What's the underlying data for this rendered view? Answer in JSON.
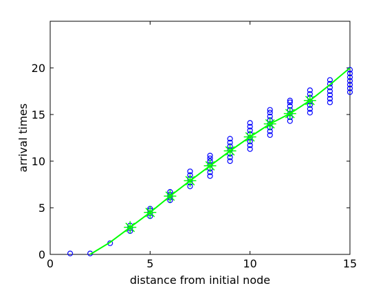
{
  "chart_data": {
    "type": "scatter",
    "xlabel": "distance from initial node",
    "ylabel": "arrival times",
    "xlim": [
      0,
      15
    ],
    "xticks": [
      0,
      5,
      10,
      15
    ],
    "ylim": [
      0,
      25
    ],
    "yticks": [
      0,
      5,
      10,
      15,
      20
    ],
    "series": [
      {
        "color": "#0000ff",
        "marker": "o",
        "line": false,
        "x": [
          1,
          2,
          3,
          4,
          4,
          4,
          5,
          5,
          5,
          5,
          6,
          6,
          6,
          6,
          7,
          7,
          7,
          7,
          7,
          8,
          8,
          8,
          8,
          8,
          8,
          8,
          9,
          9,
          9,
          9,
          9,
          9,
          9,
          10,
          10,
          10,
          10,
          10,
          10,
          10,
          10,
          11,
          11,
          11,
          11,
          11,
          11,
          11,
          11,
          12,
          12,
          12,
          12,
          12,
          12,
          12,
          13,
          13,
          13,
          13,
          13,
          13,
          13,
          14,
          14,
          14,
          14,
          14,
          14,
          14,
          15,
          15,
          15,
          15,
          15,
          15,
          15
        ],
        "values": [
          0.1,
          0.1,
          1.2,
          2.5,
          2.8,
          3.1,
          4.1,
          4.4,
          4.7,
          4.9,
          5.8,
          6.1,
          6.4,
          6.7,
          7.3,
          7.7,
          8.1,
          8.5,
          8.9,
          8.4,
          8.8,
          9.2,
          9.6,
          10.0,
          10.3,
          10.6,
          10.0,
          10.4,
          10.8,
          11.2,
          11.6,
          12.0,
          12.4,
          11.3,
          11.7,
          12.1,
          12.5,
          12.9,
          13.3,
          13.7,
          14.1,
          12.8,
          13.2,
          13.6,
          14.0,
          14.4,
          14.8,
          15.2,
          15.5,
          14.3,
          14.7,
          15.1,
          15.5,
          15.9,
          16.3,
          16.5,
          15.2,
          15.6,
          16.0,
          16.4,
          16.8,
          17.2,
          17.6,
          16.3,
          16.7,
          17.1,
          17.5,
          17.9,
          18.3,
          18.7,
          17.4,
          17.8,
          18.2,
          18.6,
          19.0,
          19.4,
          19.8
        ]
      },
      {
        "color": "#00ff00",
        "marker": "none",
        "line": true,
        "x": [
          2,
          3,
          4,
          5,
          6,
          7,
          8,
          9,
          10,
          11,
          12,
          13,
          14,
          15
        ],
        "values": [
          0,
          1.3,
          2.9,
          4.5,
          6.25,
          7.9,
          9.5,
          11.1,
          12.6,
          14.0,
          15.1,
          16.5,
          18.2,
          20
        ]
      },
      {
        "color": "#00ff00",
        "marker": "*",
        "line": false,
        "x": [
          4,
          5,
          6,
          7,
          8,
          9,
          10,
          11,
          12,
          13
        ],
        "values": [
          2.9,
          4.5,
          6.25,
          7.9,
          9.5,
          11.1,
          12.6,
          14.0,
          15.1,
          16.5
        ]
      }
    ]
  }
}
